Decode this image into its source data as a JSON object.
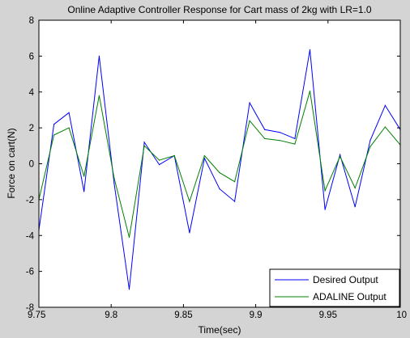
{
  "chart_data": {
    "type": "line",
    "title": "Online Adaptive Controller Response for Cart mass of 2kg with LR=1.0",
    "xlabel": "Time(sec)",
    "ylabel": "Force on cart(N)",
    "xlim": [
      9.75,
      10
    ],
    "ylim": [
      -8,
      8
    ],
    "xticks": [
      "9.75",
      "9.8",
      "9.85",
      "9.9",
      "9.95",
      "10"
    ],
    "yticks": [
      "8",
      "6",
      "4",
      "2",
      "0",
      "-2",
      "-4",
      "-6",
      "-8"
    ],
    "xtick_values": [
      9.75,
      9.8,
      9.85,
      9.9,
      9.95,
      10
    ],
    "ytick_values": [
      8,
      6,
      4,
      2,
      0,
      -2,
      -4,
      -6,
      -8
    ],
    "grid": false,
    "legend_position": "bottom-right",
    "x": [
      9.75,
      9.7604,
      9.7708,
      9.7812,
      9.7917,
      9.8021,
      9.8125,
      9.8229,
      9.8333,
      9.8437,
      9.8542,
      9.8646,
      9.875,
      9.8854,
      9.8958,
      9.9062,
      9.9167,
      9.9271,
      9.9375,
      9.9479,
      9.9583,
      9.9687,
      9.9792,
      9.9896,
      10
    ],
    "series": [
      {
        "name": "Desired Output",
        "color": "#0000ff",
        "values": [
          -3.7,
          2.2,
          2.85,
          -1.55,
          6.0,
          -1.1,
          -7.0,
          1.2,
          -0.05,
          0.45,
          -3.85,
          0.3,
          -1.4,
          -2.1,
          3.4,
          1.9,
          1.75,
          1.4,
          6.35,
          -2.55,
          0.5,
          -2.4,
          1.3,
          3.25,
          1.9
        ]
      },
      {
        "name": "ADALINE Output",
        "color": "#008000",
        "values": [
          -2.0,
          1.6,
          2.0,
          -0.7,
          3.8,
          -0.8,
          -4.1,
          1.0,
          0.2,
          0.45,
          -2.1,
          0.45,
          -0.5,
          -1.0,
          2.4,
          1.4,
          1.3,
          1.1,
          4.05,
          -1.5,
          0.4,
          -1.35,
          0.95,
          2.05,
          1.05
        ]
      }
    ]
  },
  "colors": {
    "figure_background": "#d4d4d4",
    "axes_background": "#ffffff"
  }
}
